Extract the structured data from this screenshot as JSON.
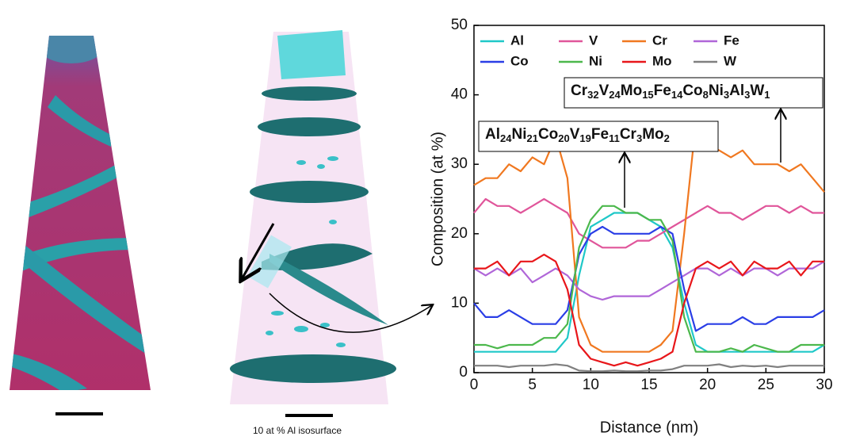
{
  "images": {
    "caption": "10 at % Al isosurface"
  },
  "chart_data": {
    "type": "line",
    "xlabel": "Distance (nm)",
    "ylabel": "Composition (at %)",
    "x": [
      0,
      1,
      2,
      3,
      4,
      5,
      6,
      7,
      8,
      9,
      10,
      11,
      12,
      13,
      14,
      15,
      16,
      17,
      18,
      19,
      20,
      21,
      22,
      23,
      24,
      25,
      26,
      27,
      28,
      29,
      30
    ],
    "xlim": [
      0,
      30
    ],
    "xticks": [
      0,
      5,
      10,
      15,
      20,
      25,
      30
    ],
    "ylim": [
      0,
      50
    ],
    "yticks": [
      0,
      10,
      20,
      30,
      40,
      50
    ],
    "grid": false,
    "legend": "upper left",
    "series": [
      {
        "name": "Al",
        "color": "#1fc8c8",
        "values": [
          3,
          3,
          3,
          3,
          3,
          3,
          3,
          3,
          5,
          14,
          21,
          22,
          23,
          23,
          23,
          22,
          21,
          18,
          10,
          4,
          3,
          3,
          3,
          3,
          3,
          3,
          3,
          3,
          3,
          3,
          4
        ]
      },
      {
        "name": "V",
        "color": "#e0559a",
        "values": [
          23,
          25,
          24,
          24,
          23,
          24,
          25,
          24,
          23,
          20,
          19,
          18,
          18,
          18,
          19,
          19,
          20,
          21,
          22,
          23,
          24,
          23,
          23,
          22,
          23,
          24,
          24,
          23,
          24,
          23,
          23
        ]
      },
      {
        "name": "Cr",
        "color": "#f07820",
        "values": [
          27,
          28,
          28,
          30,
          29,
          31,
          30,
          34,
          28,
          8,
          4,
          3,
          3,
          3,
          3,
          3,
          4,
          6,
          20,
          36,
          33,
          32,
          31,
          32,
          30,
          30,
          30,
          29,
          30,
          28,
          26
        ]
      },
      {
        "name": "Fe",
        "color": "#b066d8",
        "values": [
          15,
          14,
          15,
          14,
          15,
          13,
          14,
          15,
          14,
          12,
          11,
          10.5,
          11,
          11,
          11,
          11,
          12,
          13,
          14,
          15,
          15,
          14,
          15,
          14,
          15,
          15,
          14,
          15,
          15,
          15,
          16
        ]
      },
      {
        "name": "Co",
        "color": "#2a3ee6",
        "values": [
          10,
          8,
          8,
          9,
          8,
          7,
          7,
          7,
          9,
          17,
          20,
          21,
          20,
          20,
          20,
          20,
          21,
          20,
          12,
          6,
          7,
          7,
          7,
          8,
          7,
          7,
          8,
          8,
          8,
          8,
          9
        ]
      },
      {
        "name": "Ni",
        "color": "#4cb84c",
        "values": [
          4,
          4,
          3.5,
          4,
          4,
          4,
          5,
          5,
          7,
          18,
          22,
          24,
          24,
          23,
          23,
          22,
          22,
          19,
          8,
          3,
          3,
          3,
          3.5,
          3,
          4,
          3.5,
          3,
          3,
          4,
          4,
          4
        ]
      },
      {
        "name": "Mo",
        "color": "#e8161a",
        "values": [
          15,
          15,
          16,
          14,
          16,
          16,
          17,
          16,
          12,
          4,
          2,
          1.5,
          1,
          1.5,
          1,
          1.5,
          2,
          3,
          10,
          15,
          16,
          15,
          16,
          14,
          16,
          15,
          15,
          16,
          14,
          16,
          16
        ]
      },
      {
        "name": "W",
        "color": "#808080",
        "values": [
          1,
          1,
          1,
          0.8,
          1,
          1,
          1,
          1.2,
          1,
          0.3,
          0.2,
          0.2,
          0.3,
          0.2,
          0.2,
          0.3,
          0.3,
          0.5,
          1,
          1,
          1,
          1.2,
          0.8,
          1,
          0.9,
          1,
          0.8,
          1,
          1,
          1,
          1
        ]
      }
    ],
    "annotations": [
      {
        "parts": [
          [
            "Al",
            "24"
          ],
          [
            "Ni",
            "21"
          ],
          [
            "Co",
            "20"
          ],
          [
            "V",
            "19"
          ],
          [
            "Fe",
            "11"
          ],
          [
            "Cr",
            "3"
          ],
          [
            "Mo",
            "2"
          ]
        ]
      },
      {
        "parts": [
          [
            "Cr",
            "32"
          ],
          [
            "V",
            "24"
          ],
          [
            "Mo",
            "15"
          ],
          [
            "Fe",
            "14"
          ],
          [
            "Co",
            "8"
          ],
          [
            "Ni",
            "3"
          ],
          [
            "Al",
            "3"
          ],
          [
            "W",
            "1"
          ]
        ]
      }
    ]
  }
}
